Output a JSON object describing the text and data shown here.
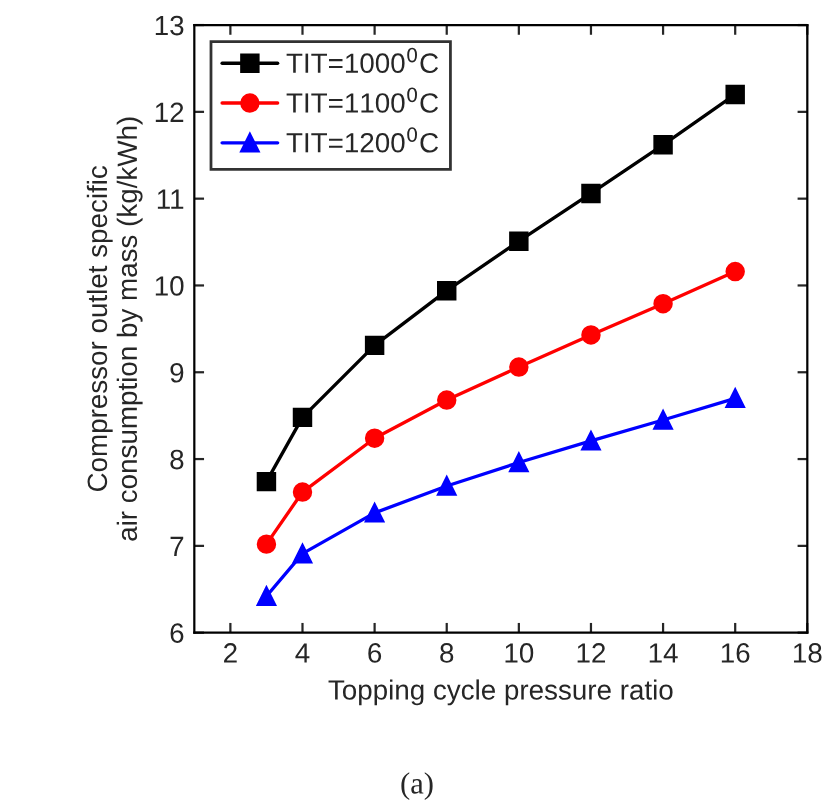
{
  "chart_data": {
    "type": "line",
    "xlabel": "Topping cycle pressure ratio",
    "ylabel": "Compressor outlet specific\nair consumption by mass (kg/kWh)",
    "x": [
      3,
      4,
      6,
      8,
      10,
      12,
      14,
      16
    ],
    "series": [
      {
        "name": "TIT=1000$^{0}$C",
        "color": "#000000",
        "marker": "square",
        "values": [
          7.74,
          8.48,
          9.31,
          9.94,
          10.51,
          11.06,
          11.62,
          12.2
        ]
      },
      {
        "name": "TIT=1100$^{0}$C",
        "color": "#ff0000",
        "marker": "circle",
        "values": [
          7.02,
          7.62,
          8.24,
          8.68,
          9.06,
          9.43,
          9.79,
          10.16
        ]
      },
      {
        "name": "TIT=1200$^{0}$C",
        "color": "#0000ff",
        "marker": "triangle",
        "values": [
          6.42,
          6.91,
          7.38,
          7.69,
          7.96,
          8.21,
          8.45,
          8.7
        ]
      }
    ],
    "xlim": [
      1,
      18
    ],
    "xticks": [
      2,
      4,
      6,
      8,
      10,
      12,
      14,
      16,
      18
    ],
    "ylim": [
      6,
      13
    ],
    "yticks": [
      6,
      7,
      8,
      9,
      10,
      11,
      12,
      13
    ],
    "grid": false,
    "legend": "top left",
    "line_style": "solid",
    "annotations": [
      "(a)"
    ]
  }
}
